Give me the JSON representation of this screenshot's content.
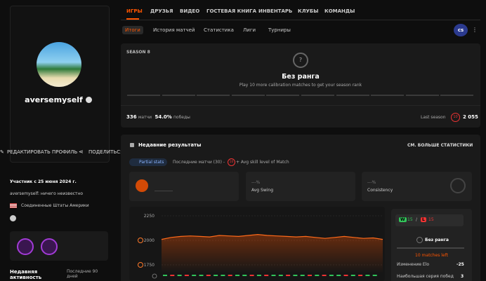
{
  "sidebar": {
    "username": "aversemyself",
    "edit": "РЕДАКТИРОВАТЬ ПРОФИЛЬ",
    "share": "ПОДЕЛИТЬСЯ",
    "member_since": "Участник с 25 июня 2024 г.",
    "bio": "aversemyself: ничего неизвестно",
    "country": "Соединенные Штаты Америки",
    "activity_title": "Недавняя активность",
    "activity_period": "Последние 90 дней"
  },
  "nav": [
    "ИГРЫ",
    "ДРУЗЬЯ",
    "ВИДЕО",
    "ГОСТЕВАЯ КНИГА",
    "ИНВЕНТАРЬ",
    "КЛУБЫ",
    "КОМАНДЫ"
  ],
  "tabs": [
    "Итоги",
    "История матчей",
    "Статистика",
    "Лиги",
    "Турниры"
  ],
  "header": {
    "game_icon": "cs"
  },
  "season": {
    "label": "SEASON 8",
    "rank_icon": "?",
    "rank": "Без ранга",
    "note": "Play 10 more calibration matches to get your season rank",
    "matches": "336",
    "matches_label": "матчи",
    "winrate": "54.0%",
    "winrate_label": "победы",
    "last_season_label": "Last season",
    "last_season_level": "10",
    "last_season_elo": "2 055"
  },
  "recent": {
    "title": "Недавние результаты",
    "more": "СМ. БОЛЬШЕ СТАТИСТИКИ",
    "partial": "Partial stats",
    "last_matches": "Последние матчи (30) -",
    "skill_level": "10",
    "avg_skill": "+ Avg skill level of Match",
    "cards": [
      {
        "value": "---%",
        "label": "Avg Swing"
      },
      {
        "value": "---%",
        "label": "Consistency"
      }
    ]
  },
  "elo_chart": {
    "type": "line",
    "ylim": [
      1750,
      2250
    ],
    "yticks": [
      2250,
      2000,
      1750
    ],
    "values": [
      2010,
      2030,
      2040,
      2045,
      2040,
      2035,
      2050,
      2045,
      2040,
      2050,
      2060,
      2050,
      2045,
      2040,
      2035,
      2040,
      2030,
      2020,
      2030,
      2040,
      2030,
      2020,
      2025,
      2010
    ]
  },
  "summary": {
    "wins_badge": "W",
    "wins": "15",
    "sep": "/",
    "loss_badge": "L",
    "losses": "15",
    "rank": "Без ранга",
    "matches_left": "10 matches left",
    "elo_change_label": "Изменение Elo",
    "elo_change": "-25",
    "streak_label": "Наибольшая серия побед",
    "streak": "3"
  }
}
